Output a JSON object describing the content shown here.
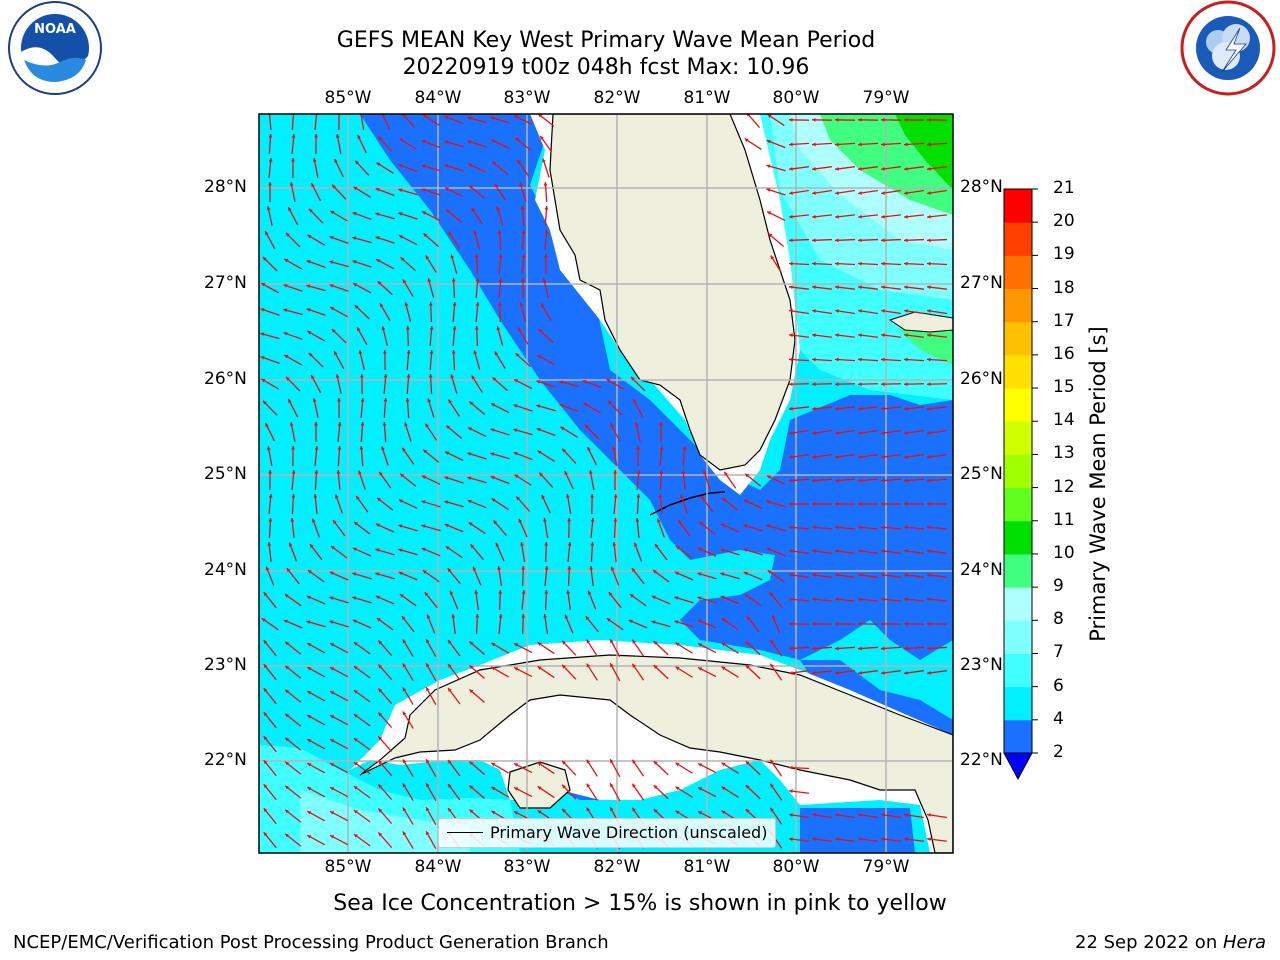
{
  "header": {
    "title_line1": "GEFS MEAN Key West Primary Wave Mean Period",
    "title_line2": "20220919 t00z 048h fcst   Max: 10.96"
  },
  "logos": {
    "left": {
      "name": "noaa-logo",
      "text": "NOAA",
      "ring_text": "NATIONAL OCEANIC AND ATMOSPHERIC ADMINISTRATION · U.S. DEPARTMENT OF COMMERCE"
    },
    "right": {
      "name": "nws-logo",
      "ring_text": "NATIONAL WEATHER SERVICE"
    }
  },
  "map": {
    "lon_ticks": [
      "85°W",
      "84°W",
      "83°W",
      "82°W",
      "81°W",
      "80°W",
      "79°W"
    ],
    "lat_ticks": [
      "28°N",
      "27°N",
      "26°N",
      "25°N",
      "24°N",
      "23°N",
      "22°N"
    ],
    "legend_label": "Primary Wave Direction (unscaled)",
    "arrow_color": "#e8100f",
    "land_color": "#efefde"
  },
  "colorbar": {
    "title": "Primary Wave Mean Period [s]",
    "ticks": [
      "2",
      "4",
      "6",
      "7",
      "8",
      "9",
      "10",
      "11",
      "12",
      "13",
      "14",
      "15",
      "16",
      "17",
      "18",
      "19",
      "20",
      "21"
    ],
    "colors": [
      "#1a70ff",
      "#00f0ff",
      "#40ffff",
      "#80ffff",
      "#b0ffff",
      "#40ff80",
      "#00e000",
      "#60ff20",
      "#a0ff00",
      "#d0ff00",
      "#ffff00",
      "#ffe000",
      "#ffc000",
      "#ff9800",
      "#ff7000",
      "#ff4000",
      "#ff0000"
    ],
    "under_color": "#0000ff"
  },
  "caption": "Sea Ice Concentration > 15% is shown in pink to yellow",
  "footer": {
    "left": "NCEP/EMC/Verification Post Processing Product Generation Branch",
    "date": "22 Sep 2022 on ",
    "host": "Hera"
  }
}
